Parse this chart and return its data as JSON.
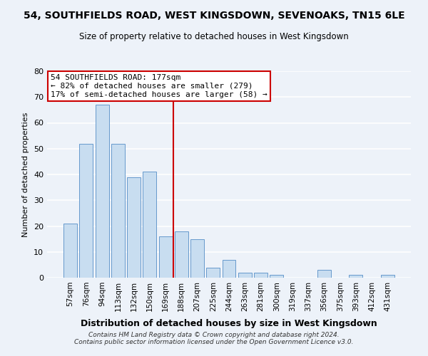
{
  "title": "54, SOUTHFIELDS ROAD, WEST KINGSDOWN, SEVENOAKS, TN15 6LE",
  "subtitle": "Size of property relative to detached houses in West Kingsdown",
  "xlabel": "Distribution of detached houses by size in West Kingsdown",
  "ylabel": "Number of detached properties",
  "bar_labels": [
    "57sqm",
    "76sqm",
    "94sqm",
    "113sqm",
    "132sqm",
    "150sqm",
    "169sqm",
    "188sqm",
    "207sqm",
    "225sqm",
    "244sqm",
    "263sqm",
    "281sqm",
    "300sqm",
    "319sqm",
    "337sqm",
    "356sqm",
    "375sqm",
    "393sqm",
    "412sqm",
    "431sqm"
  ],
  "bar_values": [
    21,
    52,
    67,
    52,
    39,
    41,
    16,
    18,
    15,
    4,
    7,
    2,
    2,
    1,
    0,
    0,
    3,
    0,
    1,
    0,
    1
  ],
  "bar_color": "#c8ddf0",
  "bar_edge_color": "#6699cc",
  "vline_color": "#cc0000",
  "ylim": [
    0,
    80
  ],
  "yticks": [
    0,
    10,
    20,
    30,
    40,
    50,
    60,
    70,
    80
  ],
  "annotation_title": "54 SOUTHFIELDS ROAD: 177sqm",
  "annotation_line1": "← 82% of detached houses are smaller (279)",
  "annotation_line2": "17% of semi-detached houses are larger (58) →",
  "annotation_box_color": "#ffffff",
  "annotation_box_edge": "#cc0000",
  "footer_line1": "Contains HM Land Registry data © Crown copyright and database right 2024.",
  "footer_line2": "Contains public sector information licensed under the Open Government Licence v3.0.",
  "background_color": "#edf2f9",
  "grid_color": "#ffffff"
}
